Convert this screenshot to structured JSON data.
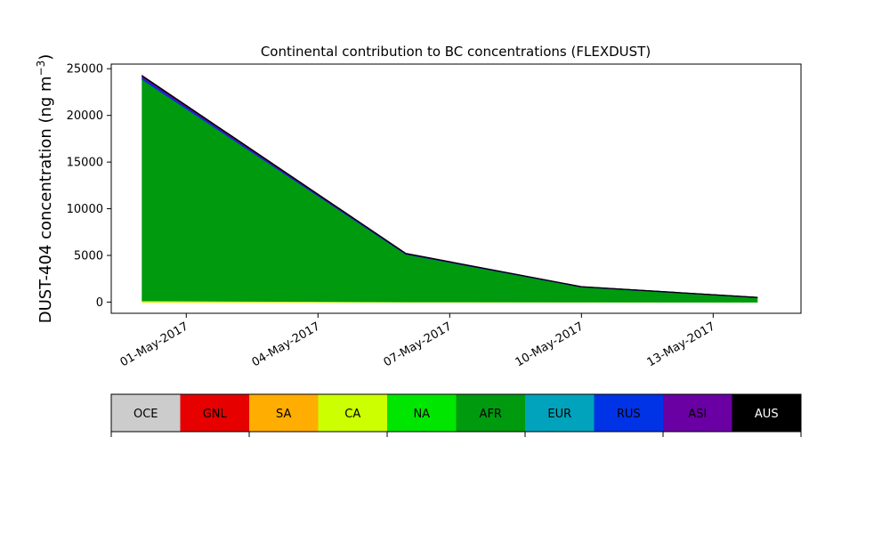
{
  "chart_data": {
    "type": "area",
    "title": "Continental contribution to BC concentrations (FLEXDUST)",
    "ylabel_main": "DUST-404 concentration (ng m",
    "ylabel_sup": "−3",
    "ylabel_close": ")",
    "xlabel": "",
    "stacked": true,
    "x": [
      "2017-04-29",
      "2017-05-05",
      "2017-05-09",
      "2017-05-13"
    ],
    "x_ticks": [
      {
        "date": "2017-04-30",
        "label": "01-May-2017"
      },
      {
        "date": "2017-05-03",
        "label": "04-May-2017"
      },
      {
        "date": "2017-05-06",
        "label": "07-May-2017"
      },
      {
        "date": "2017-05-09",
        "label": "10-May-2017"
      },
      {
        "date": "2017-05-12",
        "label": "13-May-2017"
      }
    ],
    "xlim": [
      "2017-04-28T07:00",
      "2017-05-14T00:00"
    ],
    "ylim": [
      -1200,
      25500
    ],
    "y_ticks": [
      0,
      5000,
      10000,
      15000,
      20000,
      25000
    ],
    "grid": false,
    "series": [
      {
        "name": "OCE",
        "color": "#cccccc",
        "values": [
          0,
          0,
          0,
          0
        ]
      },
      {
        "name": "GNL",
        "color": "#e60000",
        "values": [
          0,
          0,
          0,
          0
        ]
      },
      {
        "name": "SA",
        "color": "#ffad00",
        "values": [
          0,
          0,
          0,
          0
        ]
      },
      {
        "name": "CA",
        "color": "#ccff00",
        "values": [
          150,
          40,
          20,
          10
        ]
      },
      {
        "name": "NA",
        "color": "#00e600",
        "values": [
          0,
          0,
          0,
          0
        ]
      },
      {
        "name": "AFR",
        "color": "#009a0e",
        "values": [
          23700,
          5100,
          1600,
          480
        ]
      },
      {
        "name": "EUR",
        "color": "#00a3bb",
        "values": [
          0,
          0,
          0,
          0
        ]
      },
      {
        "name": "RUS",
        "color": "#0033e6",
        "values": [
          200,
          30,
          10,
          5
        ]
      },
      {
        "name": "ASI",
        "color": "#6a00a3",
        "values": [
          150,
          30,
          10,
          5
        ]
      },
      {
        "name": "AUS",
        "color": "#000000",
        "values": [
          50,
          20,
          10,
          5
        ]
      }
    ],
    "legend_placement": "bottom"
  }
}
